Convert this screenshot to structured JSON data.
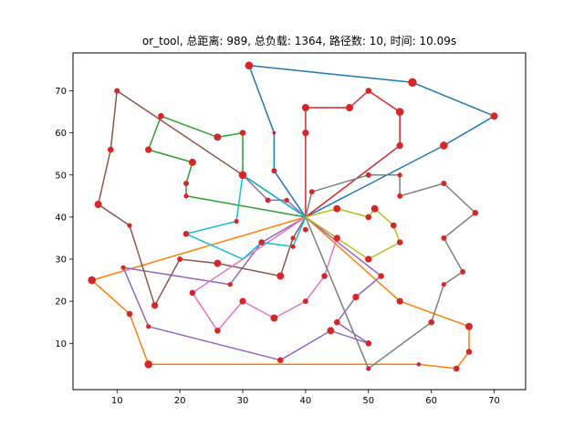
{
  "chart_data": {
    "type": "line",
    "title": "or_tool, 总距离: 989, 总负载: 1364, 路径数: 10, 时间: 10.09s",
    "xlabel": "",
    "ylabel": "",
    "xlim": [
      3,
      75
    ],
    "ylim": [
      -1,
      79
    ],
    "x_ticks": [
      10,
      20,
      30,
      40,
      50,
      60,
      70
    ],
    "y_ticks": [
      10,
      20,
      30,
      40,
      50,
      60,
      70
    ],
    "grid": false,
    "legend": "none",
    "marker_color": "#d62728",
    "depot": [
      40,
      40
    ],
    "series": [
      {
        "color": "#1f77b4",
        "points": [
          [
            40,
            40
          ],
          [
            35,
            51
          ],
          [
            35,
            60
          ],
          [
            31,
            76
          ],
          [
            57,
            72
          ],
          [
            70,
            64
          ],
          [
            62,
            57
          ],
          [
            40,
            40
          ]
        ]
      },
      {
        "color": "#ff7f0e",
        "points": [
          [
            40,
            40
          ],
          [
            6,
            25
          ],
          [
            12,
            17
          ],
          [
            15,
            5
          ],
          [
            58,
            5
          ],
          [
            64,
            4
          ],
          [
            66,
            8
          ],
          [
            66,
            14
          ],
          [
            55,
            20
          ],
          [
            40,
            40
          ]
        ]
      },
      {
        "color": "#2ca02c",
        "points": [
          [
            40,
            40
          ],
          [
            21,
            45
          ],
          [
            21,
            48
          ],
          [
            22,
            53
          ],
          [
            15,
            56
          ],
          [
            17,
            64
          ],
          [
            26,
            59
          ],
          [
            30,
            60
          ],
          [
            30,
            50
          ],
          [
            40,
            40
          ]
        ]
      },
      {
        "color": "#d62728",
        "points": [
          [
            40,
            40
          ],
          [
            40,
            60
          ],
          [
            40,
            66
          ],
          [
            47,
            66
          ],
          [
            50,
            70
          ],
          [
            55,
            65
          ],
          [
            55,
            57
          ],
          [
            40,
            40
          ]
        ]
      },
      {
        "color": "#9467bd",
        "points": [
          [
            40,
            40
          ],
          [
            30,
            50
          ],
          [
            34,
            44
          ],
          [
            37,
            44
          ],
          [
            40,
            40
          ],
          [
            33,
            34
          ],
          [
            28,
            24
          ],
          [
            11,
            28
          ],
          [
            15,
            14
          ],
          [
            36,
            6
          ],
          [
            44,
            13
          ],
          [
            50,
            10
          ],
          [
            45,
            15
          ],
          [
            48,
            21
          ],
          [
            52,
            26
          ],
          [
            40,
            40
          ]
        ]
      },
      {
        "color": "#8c564b",
        "points": [
          [
            40,
            40
          ],
          [
            38,
            35
          ],
          [
            36,
            26
          ],
          [
            26,
            29
          ],
          [
            20,
            30
          ],
          [
            16,
            19
          ],
          [
            12,
            38
          ],
          [
            7,
            43
          ],
          [
            9,
            56
          ],
          [
            10,
            70
          ],
          [
            40,
            40
          ]
        ]
      },
      {
        "color": "#e377c2",
        "points": [
          [
            40,
            40
          ],
          [
            45,
            35
          ],
          [
            43,
            26
          ],
          [
            40,
            20
          ],
          [
            35,
            16
          ],
          [
            30,
            20
          ],
          [
            26,
            13
          ],
          [
            22,
            22
          ],
          [
            40,
            40
          ]
        ]
      },
      {
        "color": "#7f7f7f",
        "points": [
          [
            40,
            40
          ],
          [
            41,
            46
          ],
          [
            50,
            50
          ],
          [
            55,
            50
          ],
          [
            55,
            45
          ],
          [
            62,
            48
          ],
          [
            67,
            41
          ],
          [
            62,
            35
          ],
          [
            65,
            27
          ],
          [
            62,
            24
          ],
          [
            60,
            15
          ],
          [
            50,
            4
          ],
          [
            40,
            40
          ]
        ]
      },
      {
        "color": "#bcbd22",
        "points": [
          [
            40,
            40
          ],
          [
            45,
            42
          ],
          [
            50,
            40
          ],
          [
            51,
            42
          ],
          [
            54,
            38
          ],
          [
            55,
            34
          ],
          [
            50,
            30
          ],
          [
            40,
            40
          ]
        ]
      },
      {
        "color": "#17becf",
        "points": [
          [
            40,
            40
          ],
          [
            38,
            33
          ],
          [
            33,
            34
          ],
          [
            30,
            30
          ],
          [
            21,
            36
          ],
          [
            29,
            39
          ],
          [
            30,
            50
          ],
          [
            40,
            40
          ]
        ]
      }
    ],
    "nodes": [
      [
        31,
        76,
        8
      ],
      [
        57,
        72,
        9
      ],
      [
        70,
        64,
        7
      ],
      [
        62,
        57,
        8
      ],
      [
        35,
        51,
        4
      ],
      [
        35,
        60,
        1
      ],
      [
        6,
        25,
        8
      ],
      [
        12,
        17,
        5
      ],
      [
        15,
        5,
        8
      ],
      [
        58,
        5,
        2
      ],
      [
        64,
        4,
        5
      ],
      [
        66,
        8,
        5
      ],
      [
        66,
        14,
        7
      ],
      [
        55,
        20,
        6
      ],
      [
        21,
        45,
        3
      ],
      [
        21,
        48,
        4
      ],
      [
        22,
        53,
        7
      ],
      [
        15,
        56,
        6
      ],
      [
        17,
        64,
        5
      ],
      [
        26,
        59,
        7
      ],
      [
        30,
        60,
        5
      ],
      [
        30,
        50,
        8
      ],
      [
        40,
        60,
        6
      ],
      [
        40,
        66,
        7
      ],
      [
        47,
        66,
        7
      ],
      [
        50,
        70,
        5
      ],
      [
        55,
        65,
        8
      ],
      [
        55,
        57,
        6
      ],
      [
        34,
        44,
        4
      ],
      [
        37,
        44,
        3
      ],
      [
        33,
        34,
        5
      ],
      [
        28,
        24,
        3
      ],
      [
        11,
        28,
        3
      ],
      [
        15,
        14,
        3
      ],
      [
        36,
        6,
        5
      ],
      [
        44,
        13,
        7
      ],
      [
        50,
        10,
        5
      ],
      [
        45,
        15,
        5
      ],
      [
        48,
        21,
        6
      ],
      [
        52,
        26,
        5
      ],
      [
        38,
        35,
        3
      ],
      [
        36,
        26,
        7
      ],
      [
        26,
        29,
        7
      ],
      [
        20,
        30,
        4
      ],
      [
        16,
        19,
        6
      ],
      [
        12,
        38,
        3
      ],
      [
        7,
        43,
        7
      ],
      [
        9,
        56,
        5
      ],
      [
        10,
        70,
        4
      ],
      [
        45,
        35,
        6
      ],
      [
        43,
        26,
        5
      ],
      [
        40,
        20,
        4
      ],
      [
        35,
        16,
        7
      ],
      [
        30,
        20,
        6
      ],
      [
        26,
        13,
        5
      ],
      [
        22,
        22,
        5
      ],
      [
        41,
        46,
        4
      ],
      [
        50,
        50,
        4
      ],
      [
        55,
        50,
        3
      ],
      [
        55,
        45,
        4
      ],
      [
        62,
        48,
        4
      ],
      [
        67,
        41,
        5
      ],
      [
        62,
        35,
        4
      ],
      [
        65,
        27,
        4
      ],
      [
        62,
        24,
        3
      ],
      [
        60,
        15,
        5
      ],
      [
        50,
        4,
        3
      ],
      [
        45,
        42,
        7
      ],
      [
        50,
        40,
        5
      ],
      [
        51,
        42,
        7
      ],
      [
        54,
        38,
        5
      ],
      [
        55,
        34,
        5
      ],
      [
        50,
        30,
        6
      ],
      [
        38,
        33,
        3
      ],
      [
        21,
        36,
        5
      ],
      [
        29,
        39,
        3
      ],
      [
        40,
        37,
        4
      ]
    ]
  }
}
